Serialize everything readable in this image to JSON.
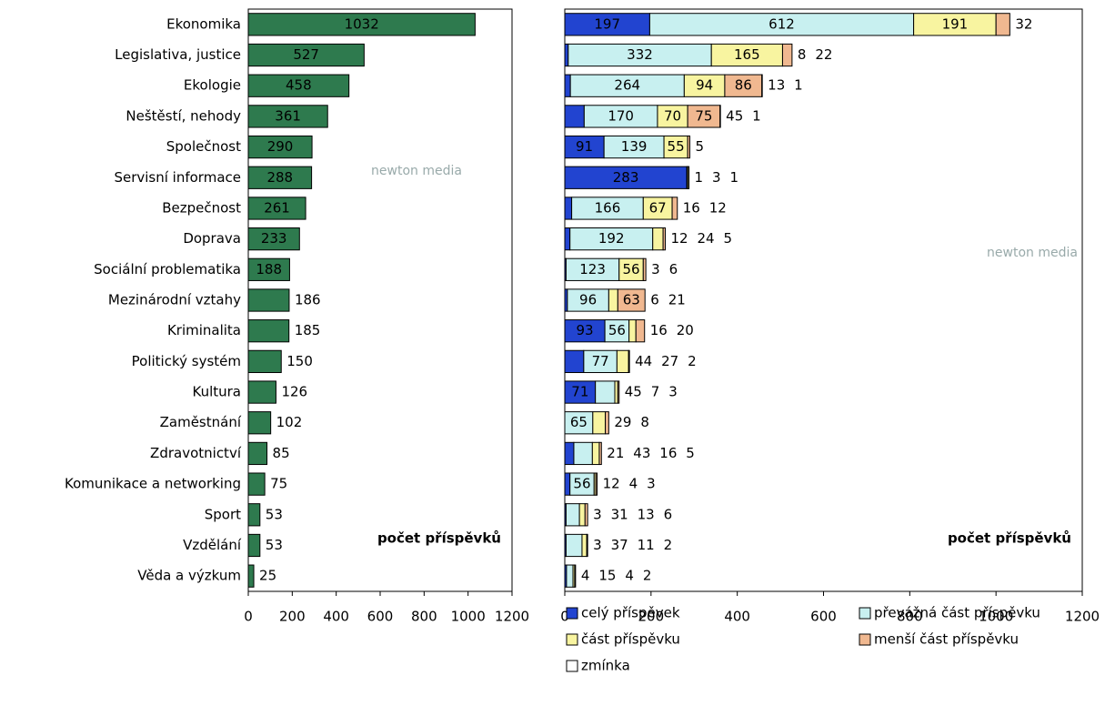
{
  "chart_data": [
    {
      "type": "bar",
      "orientation": "horizontal",
      "categories": [
        "Ekonomika",
        "Legislativa, justice",
        "Ekologie",
        "Neštěstí, nehody",
        "Společnost",
        "Servisní informace",
        "Bezpečnost",
        "Doprava",
        "Sociální problematika",
        "Mezinárodní vztahy",
        "Kriminalita",
        "Politický systém",
        "Kultura",
        "Zaměstnání",
        "Zdravotnictví",
        "Komunikace a networking",
        "Sport",
        "Vzdělání",
        "Věda a výzkum"
      ],
      "values": [
        1032,
        527,
        458,
        361,
        290,
        288,
        261,
        233,
        188,
        186,
        185,
        150,
        126,
        102,
        85,
        75,
        53,
        53,
        25
      ],
      "color": "#2e7a4e",
      "xlim": [
        0,
        1200
      ],
      "xticks": [
        0,
        200,
        400,
        600,
        800,
        1000,
        1200
      ],
      "annotation": "počet příspěvků",
      "watermark": "newton media"
    },
    {
      "type": "stacked_bar",
      "orientation": "horizontal",
      "series": [
        {
          "name": "celý příspěvek",
          "color": "#2244d0",
          "values": [
            197,
            8,
            13,
            45,
            91,
            283,
            16,
            12,
            3,
            6,
            93,
            44,
            71,
            null,
            21,
            12,
            3,
            3,
            4
          ]
        },
        {
          "name": "převážná část příspěvku",
          "color": "#c8f0f0",
          "values": [
            612,
            332,
            264,
            170,
            139,
            1,
            166,
            192,
            123,
            96,
            56,
            77,
            45,
            65,
            43,
            56,
            31,
            37,
            15
          ]
        },
        {
          "name": "část příspěvku",
          "color": "#f8f4a0",
          "values": [
            191,
            165,
            94,
            70,
            55,
            3,
            67,
            24,
            56,
            21,
            16,
            27,
            7,
            29,
            16,
            4,
            13,
            11,
            4
          ]
        },
        {
          "name": "menší část příspěvku",
          "color": "#f0b890",
          "values": [
            32,
            22,
            86,
            75,
            5,
            1,
            12,
            5,
            6,
            63,
            20,
            2,
            3,
            8,
            5,
            3,
            6,
            2,
            2
          ]
        },
        {
          "name": "zmínka",
          "color": "#ffffff",
          "values": [
            null,
            null,
            1,
            1,
            null,
            null,
            null,
            null,
            null,
            null,
            null,
            null,
            null,
            null,
            null,
            null,
            null,
            null,
            null
          ]
        }
      ],
      "xlim": [
        0,
        1200
      ],
      "xticks": [
        0,
        200,
        400,
        600,
        800,
        1000,
        1200
      ],
      "annotation": "počet příspěvků",
      "watermark": "newton media"
    }
  ]
}
